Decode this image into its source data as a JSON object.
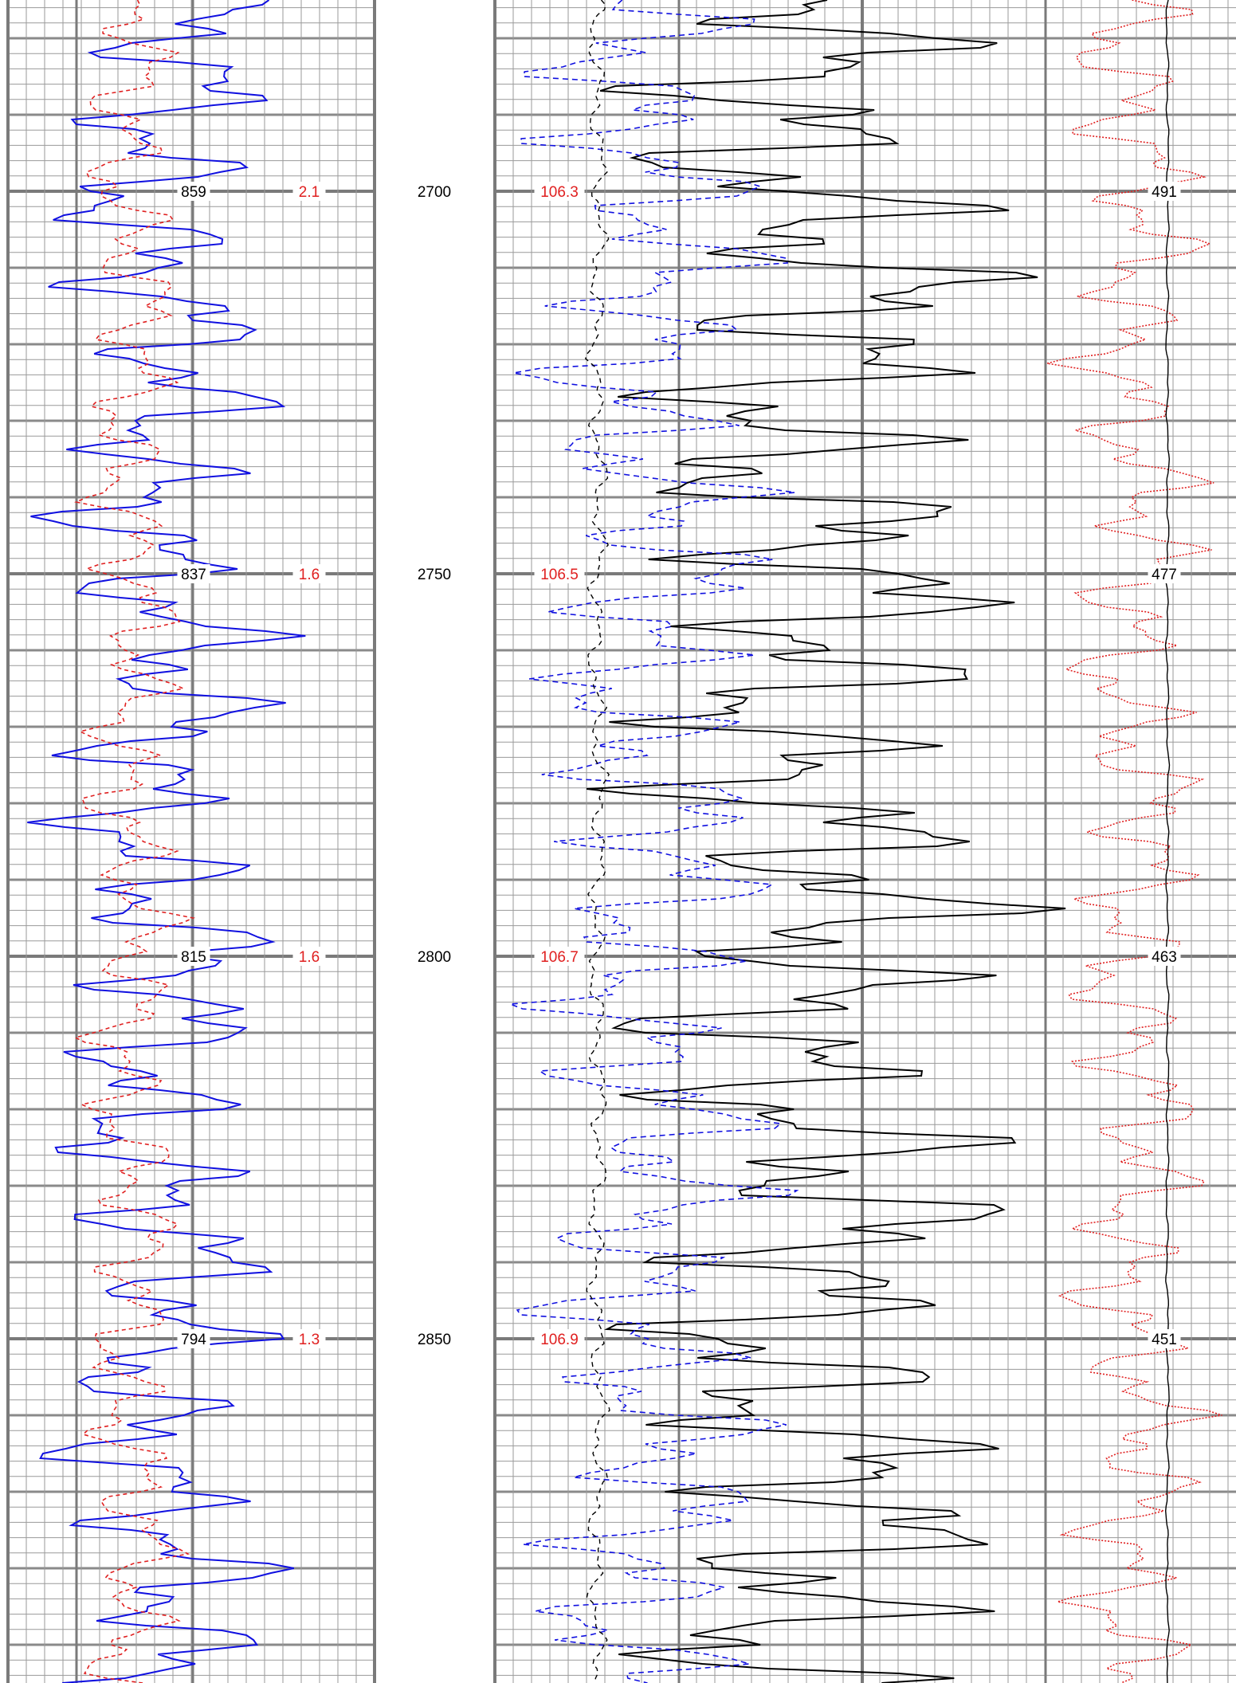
{
  "chart_data": {
    "type": "line",
    "title": "",
    "depth_range": [
      2675,
      2895
    ],
    "depth_ticks": [
      "2700",
      "2750",
      "2800",
      "2850"
    ],
    "tracks": [
      {
        "name": "track-1",
        "curves": [
          {
            "color": "#1010e0",
            "dash": "",
            "width": 2,
            "range": [
              740,
              960
            ],
            "readouts": [
              {
                "depth": 2700,
                "text": "859"
              },
              {
                "depth": 2750,
                "text": "837"
              },
              {
                "depth": 2800,
                "text": "815"
              },
              {
                "depth": 2850,
                "text": "794"
              }
            ]
          },
          {
            "color": "#e02020",
            "dash": "5,4",
            "width": 1.6,
            "range": [
              0,
              4
            ],
            "readouts": [
              {
                "depth": 2700,
                "text": "2.1"
              },
              {
                "depth": 2750,
                "text": "1.6"
              },
              {
                "depth": 2800,
                "text": "1.6"
              },
              {
                "depth": 2850,
                "text": "1.3"
              }
            ]
          }
        ]
      },
      {
        "name": "track-2",
        "curves": [
          {
            "color": "#000000",
            "dash": "",
            "width": 2,
            "range": [
              0,
              100
            ]
          },
          {
            "color": "#1010e0",
            "dash": "7,5",
            "width": 1.6,
            "range": [
              0,
              100
            ],
            "readouts": [
              {
                "depth": 2700,
                "text": "106.3"
              },
              {
                "depth": 2750,
                "text": "106.5"
              },
              {
                "depth": 2800,
                "text": "106.7"
              },
              {
                "depth": 2850,
                "text": "106.9"
              }
            ]
          },
          {
            "color": "#000000",
            "dash": "6,5",
            "width": 1.4,
            "range": [
              0,
              100
            ]
          }
        ]
      },
      {
        "name": "track-3",
        "curves": [
          {
            "color": "#e02020",
            "dash": "2,2",
            "width": 1.6,
            "range": [
              0,
              100
            ]
          },
          {
            "color": "#000000",
            "dash": "",
            "width": 1.4,
            "range": [
              0,
              100
            ],
            "readouts": [
              {
                "depth": 2700,
                "text": "491"
              },
              {
                "depth": 2750,
                "text": "477"
              },
              {
                "depth": 2800,
                "text": "463"
              },
              {
                "depth": 2850,
                "text": "451"
              }
            ]
          }
        ]
      }
    ]
  }
}
